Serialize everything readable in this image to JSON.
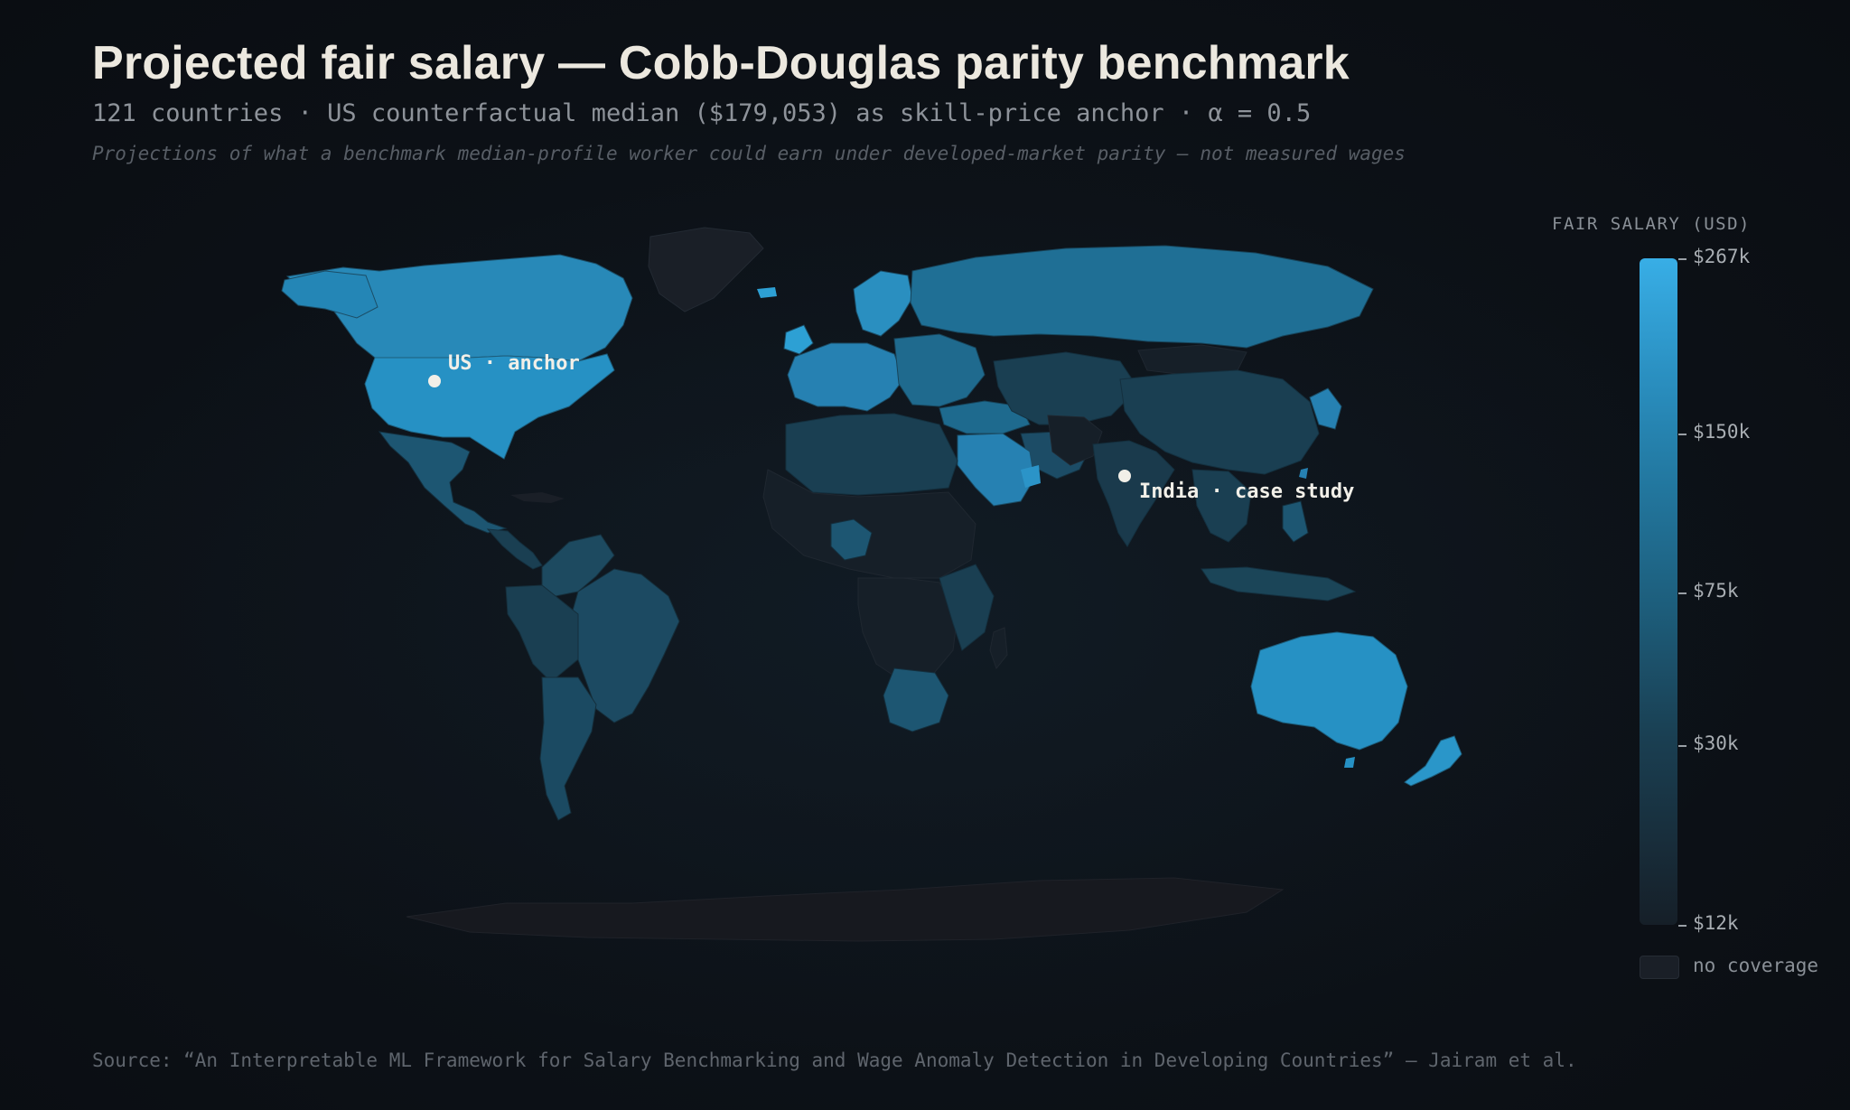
{
  "header": {
    "title": "Projected fair salary — Cobb-Douglas parity benchmark",
    "subtitle": "121 countries · US counterfactual median ($179,053) as skill-price anchor · α = 0.5",
    "note": "Projections of what a benchmark median-profile worker could earn under developed-market parity — not measured wages"
  },
  "markers": {
    "us_label": "US · anchor",
    "india_label": "India · case study"
  },
  "legend": {
    "title": "FAIR SALARY (USD)",
    "ticks": [
      "$267k",
      "$150k",
      "$75k",
      "$30k",
      "$12k"
    ],
    "no_coverage": "no coverage",
    "colors": {
      "high": "#38aee6",
      "mid_high": "#237aa3",
      "mid": "#1d5e7c",
      "low_mid": "#1a3f52",
      "low": "#161f28",
      "no_coverage": "#1a1f27"
    }
  },
  "source": "Source: “An Interpretable ML Framework for Salary Benchmarking and Wage Anomaly Detection in Developing Countries” — Jairam et al."
}
